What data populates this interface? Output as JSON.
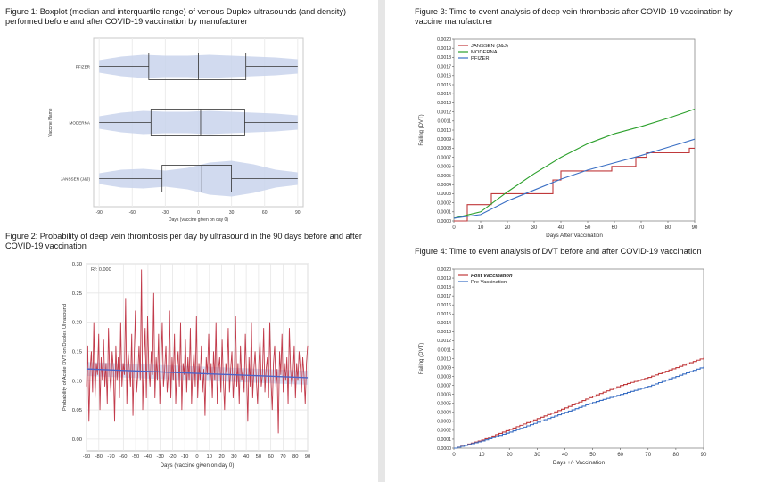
{
  "figures": {
    "fig1": {
      "title": "Figure 1: Boxplot (median and interquartile range) of venous Duplex ultrasounds (and density) performed before and after COVID-19 vaccination by manufacturer"
    },
    "fig2": {
      "title": "Figure 2: Probability of deep vein thrombosis per day by ultrasound in the 90 days before and after COVID-19 vaccination"
    },
    "fig3": {
      "title": "Figure 3: Time to event analysis of deep vein thrombosis after COVID-19 vaccination by vaccine manufacturer"
    },
    "fig4": {
      "title": "Figure 4: Time to event analysis of DVT before and after COVID-19 vaccination"
    }
  },
  "chart_data": [
    {
      "id": "fig1",
      "type": "boxplot",
      "xlabel": "Days (vaccine given on day 0)",
      "ylabel": "Vaccine Name",
      "xlim": [
        -95,
        95
      ],
      "xticks": [
        -90,
        -60,
        -30,
        0,
        30,
        60,
        90
      ],
      "categories": [
        "PFIZER",
        "MODERNA",
        "JANSSEN (J&J)"
      ],
      "boxes": [
        {
          "name": "PFIZER",
          "min": -90,
          "q1": -45,
          "median": 0,
          "q3": 43,
          "max": 90
        },
        {
          "name": "MODERNA",
          "min": -90,
          "q1": -43,
          "median": 2,
          "q3": 42,
          "max": 90
        },
        {
          "name": "JANSSEN (J&J)",
          "min": -90,
          "q1": -33,
          "median": 3,
          "q3": 30,
          "max": 90
        }
      ],
      "grid": true
    },
    {
      "id": "fig2",
      "type": "line",
      "xlabel": "Days (vaccine given on day 0)",
      "ylabel": "Probability of Acute DVT on Duplex Ultrasound",
      "annotation": "R²: 0.000",
      "xlim": [
        -90,
        90
      ],
      "ylim": [
        -0.02,
        0.3
      ],
      "xticks": [
        -90,
        -80,
        -70,
        -60,
        -50,
        -40,
        -30,
        -20,
        -10,
        0,
        10,
        20,
        30,
        40,
        50,
        60,
        70,
        80,
        90
      ],
      "yticks": [
        0.0,
        0.05,
        0.1,
        0.15,
        0.2,
        0.25,
        0.3
      ],
      "ytick_labels": [
        "0.00",
        "0.05",
        "0.10",
        "0.15",
        "0.20",
        "0.25",
        "0.30"
      ],
      "series": [
        {
          "values": [
            0.09,
            0.16,
            0.03,
            0.12,
            0.15,
            0.08,
            0.2,
            0.07,
            0.13,
            0.11,
            0.18,
            0.05,
            0.14,
            0.1,
            0.17,
            0.09,
            0.13,
            0.06,
            0.19,
            0.11,
            0.08,
            0.15,
            0.12,
            0.03,
            0.16,
            0.1,
            0.14,
            0.07,
            0.2,
            0.09,
            0.13,
            0.11,
            0.24,
            0.06,
            0.15,
            0.12,
            0.09,
            0.18,
            0.04,
            0.14,
            0.22,
            0.08,
            0.11,
            0.16,
            0.1,
            0.29,
            0.05,
            0.13,
            0.19,
            0.07,
            0.21,
            0.12,
            0.09,
            0.15,
            0.11,
            0.25,
            0.07,
            0.14,
            0.1,
            0.18,
            0.06,
            0.13,
            0.2,
            0.09,
            0.12,
            0.16,
            0.08,
            0.11,
            0.22,
            0.07,
            0.14,
            0.1,
            0.18,
            0.06,
            0.12,
            0.15,
            0.09,
            0.2,
            0.05,
            0.13,
            0.11,
            0.17,
            0.08,
            0.14,
            0.1,
            0.19,
            0.06,
            0.12,
            0.15,
            0.09,
            0.21,
            0.07,
            0.13,
            0.1,
            0.16,
            0.08,
            0.12,
            0.04,
            0.14,
            0.11,
            0.18,
            0.09,
            0.13,
            0.07,
            0.15,
            0.1,
            0.2,
            0.06,
            0.12,
            0.14,
            0.08,
            0.17,
            0.1,
            0.05,
            0.13,
            0.11,
            0.19,
            0.08,
            0.12,
            0.15,
            0.07,
            0.11,
            0.21,
            0.09,
            0.13,
            0.06,
            0.16,
            0.1,
            0.12,
            0.08,
            0.18,
            0.11,
            0.03,
            0.14,
            0.09,
            0.2,
            0.07,
            0.12,
            0.15,
            0.1,
            0.06,
            0.13,
            0.17,
            0.09,
            0.11,
            0.19,
            0.08,
            0.12,
            0.14,
            0.07,
            0.2,
            0.1,
            0.05,
            0.13,
            0.16,
            0.09,
            0.12,
            0.01,
            0.15,
            0.11,
            0.18,
            0.08,
            0.13,
            0.1,
            0.14,
            0.06,
            0.19,
            0.12,
            0.09,
            0.11,
            0.16,
            0.07,
            0.13,
            0.1,
            0.15,
            0.12,
            0.08,
            0.14,
            0.11,
            0.06,
            0.13,
            0.16
          ]
        }
      ],
      "trend": {
        "start": 0.12,
        "end": 0.105
      },
      "grid": true
    },
    {
      "id": "fig3",
      "type": "step",
      "xlabel": "Days After Vaccination",
      "ylabel": "Failing (DVT)",
      "xlim": [
        0,
        90
      ],
      "ylim": [
        0,
        0.002
      ],
      "xticks": [
        0,
        10,
        20,
        30,
        40,
        50,
        60,
        70,
        80,
        90
      ],
      "yticks": [
        "0.0000",
        "0.0001",
        "0.0002",
        "0.0003",
        "0.0004",
        "0.0005",
        "0.0006",
        "0.0007",
        "0.0008",
        "0.0009",
        "0.0010",
        "0.0011",
        "0.0012",
        "0.0013",
        "0.0014",
        "0.0015",
        "0.0016",
        "0.0017",
        "0.0018",
        "0.0019",
        "0.0020"
      ],
      "legend": "top-left",
      "series": [
        {
          "name": "JANSSEN (J&J)",
          "color": "#c0393b",
          "x": [
            0,
            5,
            5,
            14,
            14,
            20,
            20,
            37,
            37,
            40,
            40,
            50,
            50,
            59,
            59,
            68,
            68,
            72,
            72,
            88,
            88,
            90
          ],
          "y": [
            0,
            0,
            0.00018,
            0.00018,
            0.0003,
            0.0003,
            0.0003,
            0.0003,
            0.00045,
            0.00045,
            0.00055,
            0.00055,
            0.00055,
            0.00055,
            0.0006,
            0.0006,
            0.0007,
            0.0007,
            0.00075,
            0.00075,
            0.0008,
            0.0008
          ]
        },
        {
          "name": "MODERNA",
          "color": "#2ca02c",
          "x": [
            0,
            10,
            20,
            30,
            40,
            50,
            60,
            70,
            80,
            90
          ],
          "y": [
            3e-05,
            0.0001,
            0.00032,
            0.00052,
            0.0007,
            0.00085,
            0.00096,
            0.00104,
            0.00113,
            0.00123
          ]
        },
        {
          "name": "PFIZER",
          "color": "#3a6fc4",
          "x": [
            0,
            10,
            20,
            30,
            40,
            50,
            60,
            70,
            80,
            90
          ],
          "y": [
            3e-05,
            7e-05,
            0.00022,
            0.00034,
            0.00046,
            0.00056,
            0.00064,
            0.00072,
            0.00081,
            0.0009
          ]
        }
      ],
      "grid": false
    },
    {
      "id": "fig4",
      "type": "line",
      "xlabel": "Days +/- Vaccination",
      "ylabel": "Failing (DVT)",
      "xlim": [
        0,
        90
      ],
      "ylim": [
        0,
        0.002
      ],
      "xticks": [
        0,
        10,
        20,
        30,
        40,
        50,
        60,
        70,
        80,
        90
      ],
      "yticks": [
        "0.0000",
        "0.0001",
        "0.0002",
        "0.0003",
        "0.0004",
        "0.0005",
        "0.0006",
        "0.0007",
        "0.0008",
        "0.0009",
        "0.0010",
        "0.0011",
        "0.0012",
        "0.0013",
        "0.0014",
        "0.0015",
        "0.0016",
        "0.0017",
        "0.0018",
        "0.0019",
        "0.0020"
      ],
      "legend": "top-left",
      "series": [
        {
          "name": "Post Vaccination",
          "color": "#c0393b",
          "x": [
            0,
            10,
            20,
            30,
            40,
            50,
            60,
            70,
            80,
            90
          ],
          "y": [
            0,
            9e-05,
            0.00021,
            0.00033,
            0.00045,
            0.00058,
            0.0007,
            0.00079,
            0.0009,
            0.00101
          ]
        },
        {
          "name": "Pre Vaccination",
          "color": "#3a6fc4",
          "x": [
            0,
            10,
            20,
            30,
            40,
            50,
            60,
            70,
            80,
            90
          ],
          "y": [
            0,
            8e-05,
            0.00018,
            0.00029,
            0.0004,
            0.00051,
            0.0006,
            0.00069,
            0.0008,
            0.00091
          ]
        }
      ],
      "grid": false
    }
  ]
}
